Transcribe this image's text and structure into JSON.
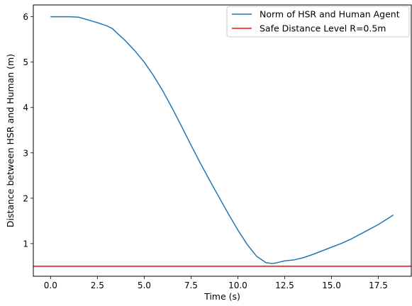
{
  "chart_data": {
    "type": "line",
    "title": "",
    "xlabel": "Time (s)",
    "ylabel": "Distance between HSR and Human (m)",
    "xlim": [
      -0.92,
      19.26
    ],
    "ylim": [
      0.28,
      6.26
    ],
    "xticks": [
      0.0,
      2.5,
      5.0,
      7.5,
      10.0,
      12.5,
      15.0,
      17.5
    ],
    "xtick_labels": [
      "0.0",
      "2.5",
      "5.0",
      "7.5",
      "10.0",
      "12.5",
      "15.0",
      "17.5"
    ],
    "yticks": [
      1,
      2,
      3,
      4,
      5,
      6
    ],
    "ytick_labels": [
      "1",
      "2",
      "3",
      "4",
      "5",
      "6"
    ],
    "grid": false,
    "legend_position": "top-right",
    "series": [
      {
        "name": "Norm of HSR and Human Agent",
        "color": "#1f77b4",
        "x": [
          0.0,
          0.5,
          1.0,
          1.5,
          2.0,
          2.5,
          3.0,
          3.3,
          3.5,
          4.0,
          4.5,
          5.0,
          5.5,
          6.0,
          6.5,
          7.0,
          7.5,
          8.0,
          8.5,
          9.0,
          9.5,
          10.0,
          10.5,
          11.0,
          11.5,
          11.8,
          12.0,
          12.5,
          13.0,
          13.5,
          14.0,
          14.5,
          15.0,
          15.5,
          16.0,
          16.5,
          17.0,
          17.5,
          18.0,
          18.3
        ],
        "y": [
          6.0,
          6.0,
          6.0,
          5.99,
          5.93,
          5.87,
          5.8,
          5.74,
          5.66,
          5.47,
          5.25,
          5.0,
          4.7,
          4.36,
          3.98,
          3.58,
          3.17,
          2.77,
          2.39,
          2.02,
          1.65,
          1.3,
          0.98,
          0.72,
          0.58,
          0.56,
          0.57,
          0.62,
          0.64,
          0.69,
          0.76,
          0.84,
          0.92,
          1.0,
          1.09,
          1.2,
          1.31,
          1.42,
          1.55,
          1.63
        ]
      },
      {
        "name": "Safe Distance Level R=0.5m",
        "color": "#ff0000",
        "hline": 0.5
      }
    ]
  }
}
